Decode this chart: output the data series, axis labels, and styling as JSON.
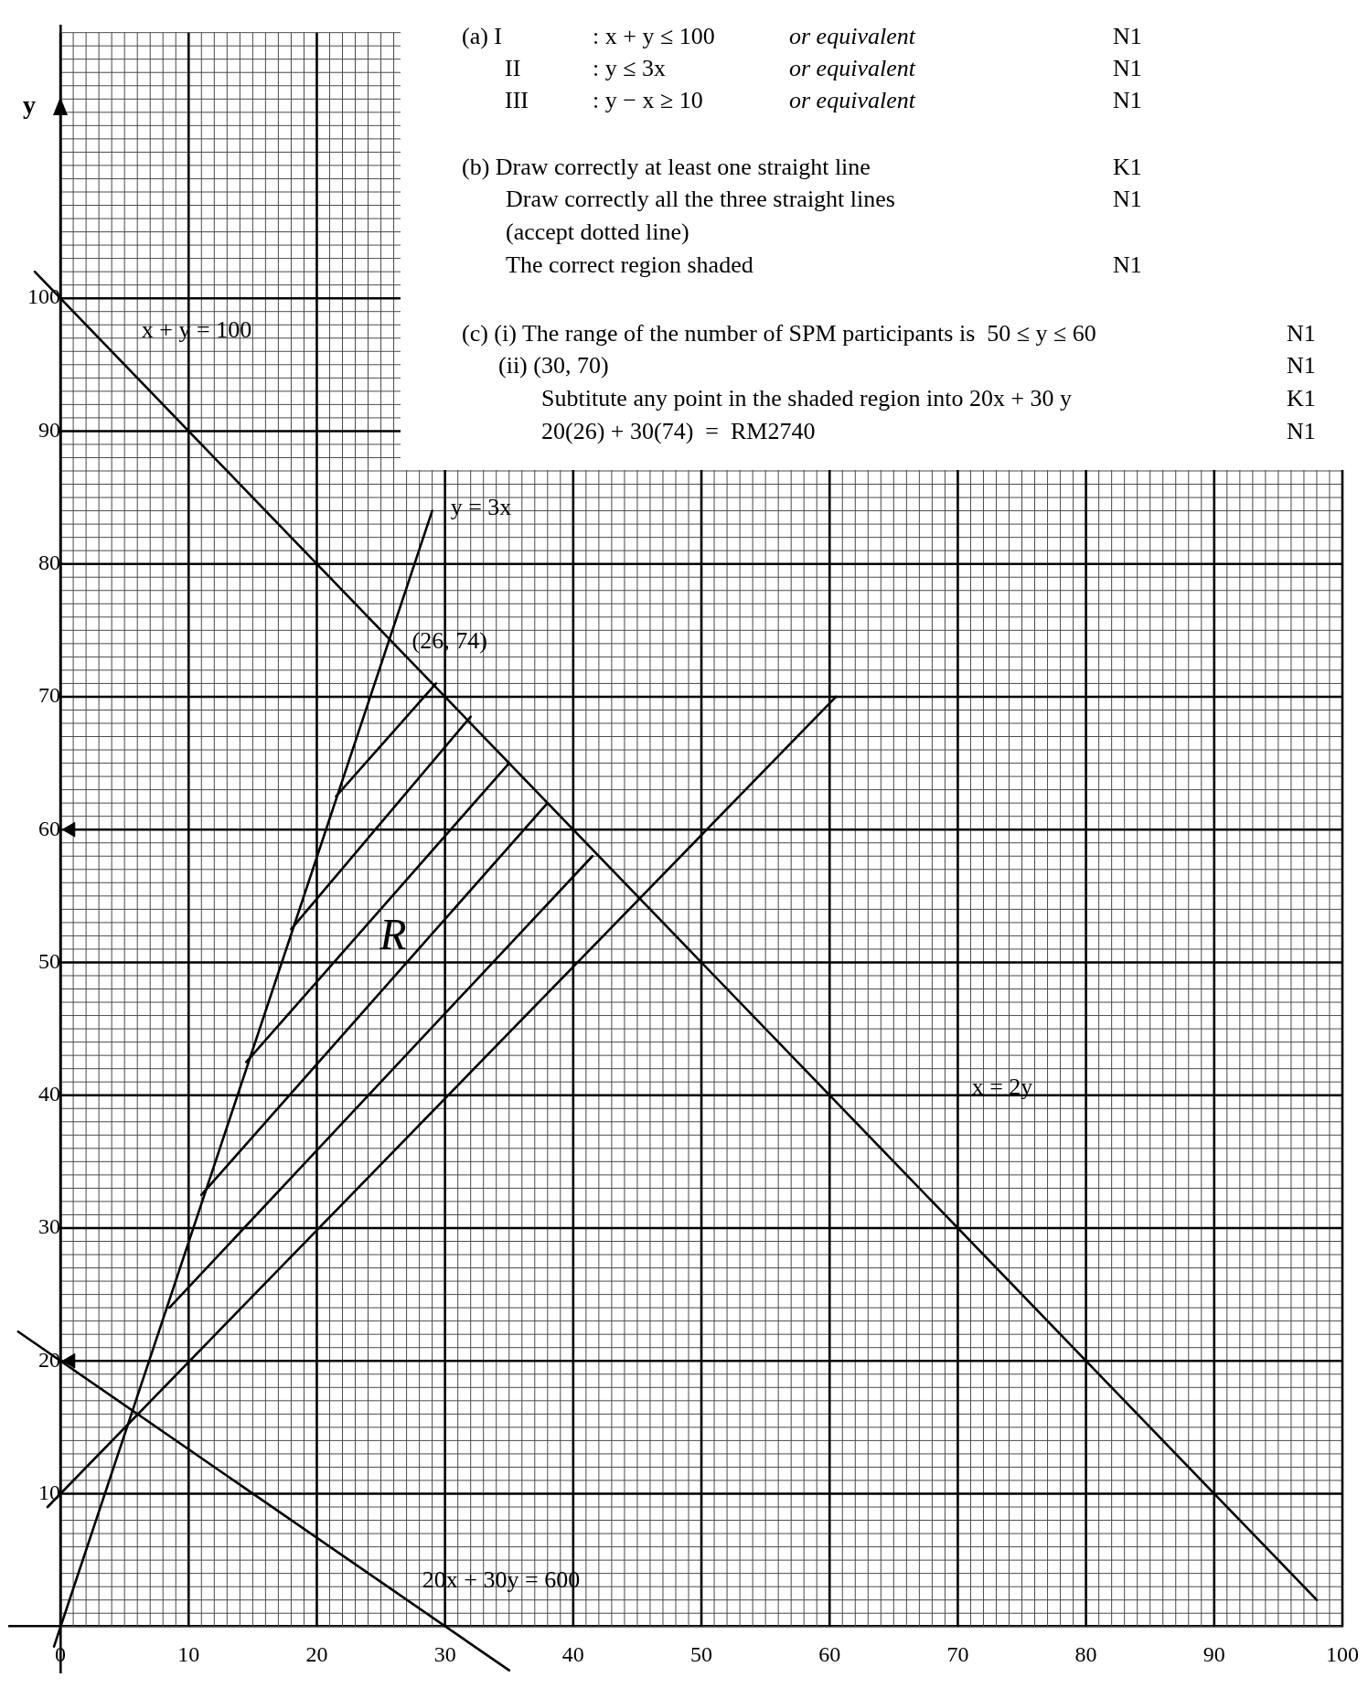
{
  "chart_data": {
    "type": "line",
    "ylabel": "y",
    "grid": true,
    "marker": "none",
    "xlim": [
      -4,
      100
    ],
    "ylim": [
      -3.5,
      120.5
    ],
    "xticks": [
      0,
      {
        "value": 1,
        "label": null
      },
      {
        "value": 2,
        "label": null
      },
      {
        "value": 3,
        "label": null
      },
      {
        "value": 4,
        "label": null
      },
      {
        "value": 5,
        "label": null
      },
      {
        "value": 6,
        "label": null
      },
      {
        "value": 7,
        "label": null
      },
      {
        "value": 8,
        "label": null
      },
      {
        "value": 9,
        "label": null
      },
      10,
      {
        "value": 11,
        "label": null
      },
      {
        "value": 12,
        "label": null
      },
      {
        "value": 13,
        "label": null
      },
      {
        "value": 14,
        "label": null
      },
      {
        "value": 15,
        "label": null
      },
      {
        "value": 16,
        "label": null
      },
      {
        "value": 17,
        "label": null
      },
      {
        "value": 18,
        "label": null
      },
      {
        "value": 19,
        "label": null
      },
      20,
      {
        "value": 21,
        "label": null
      },
      {
        "value": 22,
        "label": null
      },
      {
        "value": 23,
        "label": null
      },
      {
        "value": 24,
        "label": null
      },
      {
        "value": 25,
        "label": null
      },
      {
        "value": 26,
        "label": null
      },
      {
        "value": 27,
        "label": null
      },
      {
        "value": 28,
        "label": null
      },
      {
        "value": 29,
        "label": null
      },
      30,
      {
        "value": 31,
        "label": null
      },
      {
        "value": 32,
        "label": null
      },
      {
        "value": 33,
        "label": null
      },
      {
        "value": 34,
        "label": null
      },
      {
        "value": 35,
        "label": null
      },
      {
        "value": 36,
        "label": null
      },
      {
        "value": 37,
        "label": null
      },
      {
        "value": 38,
        "label": null
      },
      {
        "value": 39,
        "label": null
      },
      40,
      {
        "value": 41,
        "label": null
      },
      {
        "value": 42,
        "label": null
      },
      {
        "value": 43,
        "label": null
      },
      {
        "value": 44,
        "label": null
      },
      {
        "value": 45,
        "label": null
      },
      {
        "value": 46,
        "label": null
      },
      {
        "value": 47,
        "label": null
      },
      {
        "value": 48,
        "label": null
      },
      {
        "value": 49,
        "label": null
      },
      50,
      {
        "value": 51,
        "label": null
      },
      {
        "value": 52,
        "label": null
      },
      {
        "value": 53,
        "label": null
      },
      {
        "value": 54,
        "label": null
      },
      {
        "value": 55,
        "label": null
      },
      {
        "value": 56,
        "label": null
      },
      {
        "value": 57,
        "label": null
      },
      {
        "value": 58,
        "label": null
      },
      {
        "value": 59,
        "label": null
      },
      60,
      {
        "value": 61,
        "label": null
      },
      {
        "value": 62,
        "label": null
      },
      {
        "value": 63,
        "label": null
      },
      {
        "value": 64,
        "label": null
      },
      {
        "value": 65,
        "label": null
      },
      {
        "value": 66,
        "label": null
      },
      {
        "value": 67,
        "label": null
      },
      {
        "value": 68,
        "label": null
      },
      {
        "value": 69,
        "label": null
      },
      70,
      {
        "value": 71,
        "label": null
      },
      {
        "value": 72,
        "label": null
      },
      {
        "value": 73,
        "label": null
      },
      {
        "value": 74,
        "label": null
      },
      {
        "value": 75,
        "label": null
      },
      {
        "value": 76,
        "label": null
      },
      {
        "value": 77,
        "label": null
      },
      {
        "value": 78,
        "label": null
      },
      {
        "value": 79,
        "label": null
      },
      80,
      {
        "value": 81,
        "label": null
      },
      {
        "value": 82,
        "label": null
      },
      {
        "value": 83,
        "label": null
      },
      {
        "value": 84,
        "label": null
      },
      {
        "value": 85,
        "label": null
      },
      {
        "value": 86,
        "label": null
      },
      {
        "value": 87,
        "label": null
      },
      {
        "value": 88,
        "label": null
      },
      {
        "value": 89,
        "label": null
      },
      90,
      {
        "value": 91,
        "label": null
      },
      {
        "value": 92,
        "label": null
      },
      {
        "value": 93,
        "label": null
      },
      {
        "value": 94,
        "label": null
      },
      {
        "value": 95,
        "label": null
      },
      {
        "value": 96,
        "label": null
      },
      {
        "value": 97,
        "label": null
      },
      {
        "value": 98,
        "label": null
      },
      {
        "value": 99,
        "label": null
      },
      100
    ],
    "yticks": [
      {
        "value": 0,
        "label": null
      },
      {
        "value": 1,
        "label": null
      },
      {
        "value": 2,
        "label": null
      },
      {
        "value": 3,
        "label": null
      },
      {
        "value": 4,
        "label": null
      },
      {
        "value": 5,
        "label": null
      },
      {
        "value": 6,
        "label": null
      },
      {
        "value": 7,
        "label": null
      },
      {
        "value": 8,
        "label": null
      },
      {
        "value": 9,
        "label": null
      },
      10,
      {
        "value": 11,
        "label": null
      },
      {
        "value": 12,
        "label": null
      },
      {
        "value": 13,
        "label": null
      },
      {
        "value": 14,
        "label": null
      },
      {
        "value": 15,
        "label": null
      },
      {
        "value": 16,
        "label": null
      },
      {
        "value": 17,
        "label": null
      },
      {
        "value": 18,
        "label": null
      },
      {
        "value": 19,
        "label": null
      },
      20,
      {
        "value": 21,
        "label": null
      },
      {
        "value": 22,
        "label": null
      },
      {
        "value": 23,
        "label": null
      },
      {
        "value": 24,
        "label": null
      },
      {
        "value": 25,
        "label": null
      },
      {
        "value": 26,
        "label": null
      },
      {
        "value": 27,
        "label": null
      },
      {
        "value": 28,
        "label": null
      },
      {
        "value": 29,
        "label": null
      },
      30,
      {
        "value": 31,
        "label": null
      },
      {
        "value": 32,
        "label": null
      },
      {
        "value": 33,
        "label": null
      },
      {
        "value": 34,
        "label": null
      },
      {
        "value": 35,
        "label": null
      },
      {
        "value": 36,
        "label": null
      },
      {
        "value": 37,
        "label": null
      },
      {
        "value": 38,
        "label": null
      },
      {
        "value": 39,
        "label": null
      },
      40,
      {
        "value": 41,
        "label": null
      },
      {
        "value": 42,
        "label": null
      },
      {
        "value": 43,
        "label": null
      },
      {
        "value": 44,
        "label": null
      },
      {
        "value": 45,
        "label": null
      },
      {
        "value": 46,
        "label": null
      },
      {
        "value": 47,
        "label": null
      },
      {
        "value": 48,
        "label": null
      },
      {
        "value": 49,
        "label": null
      },
      50,
      {
        "value": 51,
        "label": null
      },
      {
        "value": 52,
        "label": null
      },
      {
        "value": 53,
        "label": null
      },
      {
        "value": 54,
        "label": null
      },
      {
        "value": 55,
        "label": null
      },
      {
        "value": 56,
        "label": null
      },
      {
        "value": 57,
        "label": null
      },
      {
        "value": 58,
        "label": null
      },
      {
        "value": 59,
        "label": null
      },
      60,
      {
        "value": 61,
        "label": null
      },
      {
        "value": 62,
        "label": null
      },
      {
        "value": 63,
        "label": null
      },
      {
        "value": 64,
        "label": null
      },
      {
        "value": 65,
        "label": null
      },
      {
        "value": 66,
        "label": null
      },
      {
        "value": 67,
        "label": null
      },
      {
        "value": 68,
        "label": null
      },
      {
        "value": 69,
        "label": null
      },
      70,
      {
        "value": 71,
        "label": null
      },
      {
        "value": 72,
        "label": null
      },
      {
        "value": 73,
        "label": null
      },
      {
        "value": 74,
        "label": null
      },
      {
        "value": 75,
        "label": null
      },
      {
        "value": 76,
        "label": null
      },
      {
        "value": 77,
        "label": null
      },
      {
        "value": 78,
        "label": null
      },
      {
        "value": 79,
        "label": null
      },
      80,
      {
        "value": 81,
        "label": null
      },
      {
        "value": 82,
        "label": null
      },
      {
        "value": 83,
        "label": null
      },
      {
        "value": 84,
        "label": null
      },
      {
        "value": 85,
        "label": null
      },
      {
        "value": 86,
        "label": null
      },
      {
        "value": 87,
        "label": null
      },
      {
        "value": 88,
        "label": null
      },
      {
        "value": 89,
        "label": null
      },
      90,
      {
        "value": 91,
        "label": null
      },
      {
        "value": 92,
        "label": null
      },
      {
        "value": 93,
        "label": null
      },
      {
        "value": 94,
        "label": null
      },
      {
        "value": 95,
        "label": null
      },
      {
        "value": 96,
        "label": null
      },
      {
        "value": 97,
        "label": null
      },
      {
        "value": 98,
        "label": null
      },
      {
        "value": 99,
        "label": null
      },
      100,
      {
        "value": 101,
        "label": null
      },
      {
        "value": 102,
        "label": null
      },
      {
        "value": 103,
        "label": null
      },
      {
        "value": 104,
        "label": null
      },
      {
        "value": 105,
        "label": null
      },
      {
        "value": 106,
        "label": null
      },
      {
        "value": 107,
        "label": null
      },
      {
        "value": 108,
        "label": null
      },
      {
        "value": 109,
        "label": null
      },
      {
        "value": 110,
        "label": null
      },
      {
        "value": 111,
        "label": null
      },
      {
        "value": 112,
        "label": null
      },
      {
        "value": 113,
        "label": null
      },
      {
        "value": 114,
        "label": null
      },
      {
        "value": 115,
        "label": null
      },
      {
        "value": 116,
        "label": null
      },
      {
        "value": 117,
        "label": null
      },
      {
        "value": 118,
        "label": null
      },
      {
        "value": 119,
        "label": null
      },
      {
        "value": 120,
        "label": null
      }
    ],
    "series": [
      {
        "color": "#000000",
        "x": [
          -2,
          98
        ],
        "values": [
          102,
          2
        ]
      },
      {
        "color": "#000000",
        "x": [
          -0.5,
          29
        ],
        "values": [
          -1.5,
          84
        ]
      },
      {
        "color": "#000000",
        "x": [
          -1,
          60.5
        ],
        "values": [
          9,
          70
        ]
      },
      {
        "color": "#000000",
        "x": [
          -3.3,
          35
        ],
        "values": [
          22.2,
          -3.3
        ]
      },
      {
        "color": "#000000",
        "x": [
          21.5,
          29.3
        ],
        "values": [
          62.5,
          71
        ]
      },
      {
        "color": "#000000",
        "x": [
          18,
          32
        ],
        "values": [
          52.5,
          68.5
        ]
      },
      {
        "color": "#000000",
        "x": [
          14.5,
          35
        ],
        "values": [
          42.5,
          65
        ]
      },
      {
        "color": "#000000",
        "x": [
          11,
          38
        ],
        "values": [
          32.5,
          62
        ]
      },
      {
        "color": "#000000",
        "x": [
          8.5,
          41.5
        ],
        "values": [
          24,
          58
        ]
      },
      {
        "type": "scatter",
        "marker": "triangle",
        "color": "#000000",
        "x": [
          0.8,
          0.8
        ],
        "values": [
          60,
          20
        ]
      }
    ],
    "annotations": [
      "(a) I\t: x + y ≤ 100\tor equivalent\tN1",
      "II\t: y ≤ 3x\tor equivalent\tN1",
      "III\t: y − x ≥ 10\tor equivalent\tN1",
      "(b) Draw correctly at least one straight line\tK1",
      "Draw correctly all the three straight lines\tN1",
      "(accept dotted line)",
      "The correct region shaded\tN1",
      "(c) (i) The range of the number of SPM participants is  50 ≤ y ≤ 60\tN1",
      "(ii) (30, 70)\tN1",
      "Subtitute any point in the shaded region into 20x + 30 y\tK1",
      "20(26) + 30(74)  =  RM2740\tN1",
      "x + y = 100",
      "R",
      "x = 2y",
      "20x + 30y = 600",
      {
        "text": "y = 3x",
        "x": 29,
        "y": 84
      },
      {
        "text": "(26, 74)",
        "x": 26,
        "y": 74
      }
    ]
  }
}
